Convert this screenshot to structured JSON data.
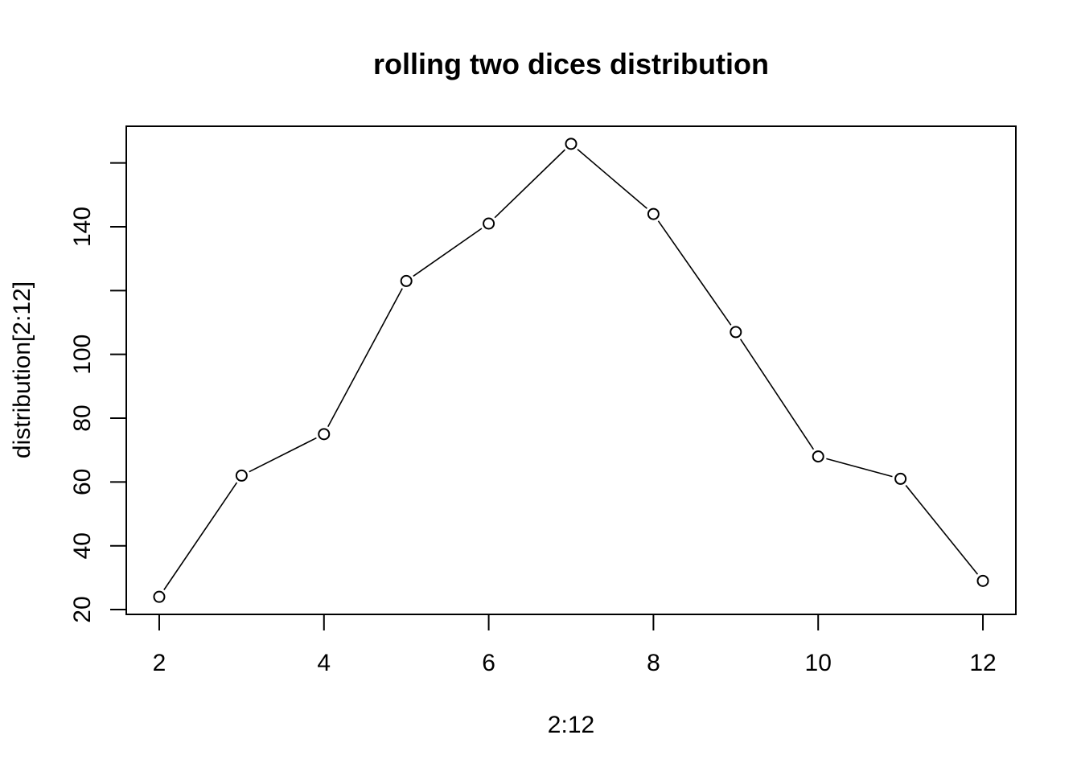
{
  "chart_data": {
    "type": "line",
    "title": "rolling two dices distribution",
    "xlabel": "2:12",
    "ylabel": "distribution[2:12]",
    "x": [
      2,
      3,
      4,
      5,
      6,
      7,
      8,
      9,
      10,
      11,
      12
    ],
    "series": [
      {
        "values": [
          24,
          62,
          75,
          123,
          141,
          166,
          144,
          107,
          68,
          61,
          29
        ]
      }
    ],
    "xlim": [
      1.6,
      12.4
    ],
    "ylim": [
      18.5,
      171.5
    ],
    "xticks": [
      2,
      4,
      6,
      8,
      10,
      12
    ],
    "xtick_labels": [
      "2",
      "4",
      "6",
      "8",
      "10",
      "12"
    ],
    "yticks": [
      20,
      40,
      60,
      80,
      100,
      120,
      140,
      160
    ],
    "ytick_labels": [
      "20",
      "40",
      "60",
      "80",
      "100",
      "",
      "140",
      ""
    ],
    "marker": "open-circle",
    "line_color": "#000000",
    "grid": false,
    "legend": "none"
  }
}
